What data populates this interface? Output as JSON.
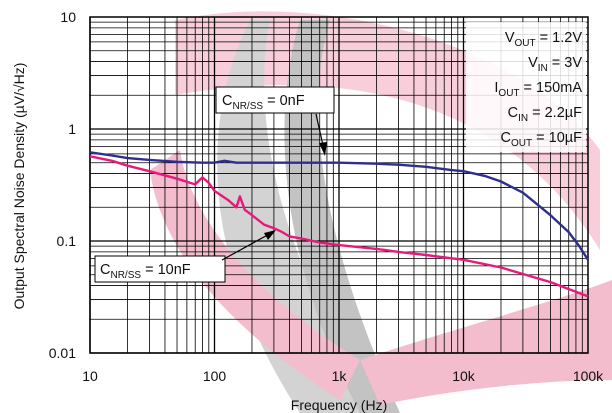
{
  "chart_data": {
    "type": "line",
    "xscale": "log",
    "yscale": "log",
    "xlim": [
      10,
      100000
    ],
    "ylim": [
      0.01,
      10
    ],
    "grid": true,
    "xlabel": "Frequency (Hz)",
    "ylabel": "Output Spectral Noise Density (µV/√Hz)",
    "xticks": [
      {
        "value": 10,
        "label": "10"
      },
      {
        "value": 100,
        "label": "100"
      },
      {
        "value": 1000,
        "label": "1k"
      },
      {
        "value": 10000,
        "label": "10k"
      },
      {
        "value": 100000,
        "label": "100k"
      }
    ],
    "yticks": [
      {
        "value": 0.01,
        "label": "0.01"
      },
      {
        "value": 0.1,
        "label": "0.1"
      },
      {
        "value": 1,
        "label": "1"
      },
      {
        "value": 10,
        "label": "10"
      }
    ],
    "series": [
      {
        "name": "C_NR/SS = 0nF",
        "color": "#2e2e8f",
        "points": [
          [
            10,
            0.62
          ],
          [
            15,
            0.58
          ],
          [
            20,
            0.55
          ],
          [
            30,
            0.53
          ],
          [
            50,
            0.51
          ],
          [
            80,
            0.5
          ],
          [
            100,
            0.5
          ],
          [
            120,
            0.52
          ],
          [
            150,
            0.5
          ],
          [
            200,
            0.5
          ],
          [
            300,
            0.5
          ],
          [
            500,
            0.5
          ],
          [
            1000,
            0.5
          ],
          [
            2000,
            0.49
          ],
          [
            3000,
            0.48
          ],
          [
            5000,
            0.46
          ],
          [
            8000,
            0.43
          ],
          [
            10000,
            0.42
          ],
          [
            15000,
            0.38
          ],
          [
            20000,
            0.34
          ],
          [
            30000,
            0.27
          ],
          [
            50000,
            0.17
          ],
          [
            70000,
            0.12
          ],
          [
            85000,
            0.09
          ],
          [
            100000,
            0.068
          ]
        ]
      },
      {
        "name": "C_NR/SS = 10nF",
        "color": "#e8197a",
        "points": [
          [
            10,
            0.57
          ],
          [
            15,
            0.52
          ],
          [
            20,
            0.47
          ],
          [
            30,
            0.42
          ],
          [
            50,
            0.36
          ],
          [
            70,
            0.32
          ],
          [
            80,
            0.37
          ],
          [
            90,
            0.33
          ],
          [
            100,
            0.28
          ],
          [
            130,
            0.23
          ],
          [
            150,
            0.2
          ],
          [
            160,
            0.25
          ],
          [
            175,
            0.19
          ],
          [
            200,
            0.17
          ],
          [
            250,
            0.14
          ],
          [
            300,
            0.13
          ],
          [
            350,
            0.12
          ],
          [
            400,
            0.11
          ],
          [
            500,
            0.105
          ],
          [
            700,
            0.097
          ],
          [
            1000,
            0.092
          ],
          [
            2000,
            0.085
          ],
          [
            3000,
            0.08
          ],
          [
            5000,
            0.075
          ],
          [
            10000,
            0.068
          ],
          [
            20000,
            0.058
          ],
          [
            50000,
            0.043
          ],
          [
            100000,
            0.032
          ]
        ]
      }
    ],
    "annotations": [
      {
        "main": "C",
        "sub": "NR/SS",
        "rest": " = 0nF"
      },
      {
        "main": "C",
        "sub": "NR/SS",
        "rest": " = 10nF"
      }
    ],
    "conditions": [
      {
        "main": "V",
        "sub": "OUT",
        "rest": " = 1.2V"
      },
      {
        "main": "V",
        "sub": "IN",
        "rest": " = 3V"
      },
      {
        "main": "I",
        "sub": "OUT",
        "rest": " = 150mA"
      },
      {
        "main": "C",
        "sub": "IN",
        "rest": " = 2.2µF"
      },
      {
        "main": "C",
        "sub": "OUT",
        "rest": " = 10µF"
      }
    ]
  }
}
